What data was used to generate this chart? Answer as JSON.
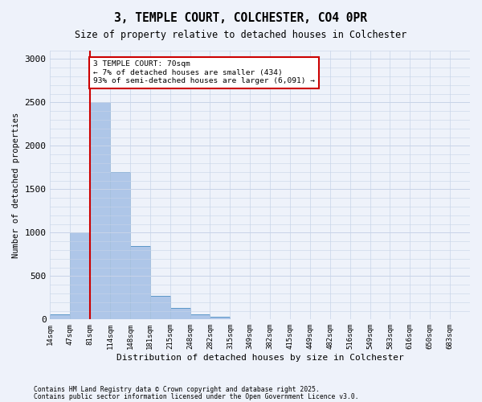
{
  "title_line1": "3, TEMPLE COURT, COLCHESTER, CO4 0PR",
  "title_line2": "Size of property relative to detached houses in Colchester",
  "xlabel": "Distribution of detached houses by size in Colchester",
  "ylabel": "Number of detached properties",
  "bin_labels": [
    "14sqm",
    "47sqm",
    "81sqm",
    "114sqm",
    "148sqm",
    "181sqm",
    "215sqm",
    "248sqm",
    "282sqm",
    "315sqm",
    "349sqm",
    "382sqm",
    "415sqm",
    "449sqm",
    "482sqm",
    "516sqm",
    "549sqm",
    "583sqm",
    "616sqm",
    "650sqm",
    "683sqm"
  ],
  "bar_heights": [
    60,
    1000,
    2500,
    1700,
    850,
    270,
    130,
    60,
    30,
    5,
    5,
    0,
    0,
    0,
    0,
    0,
    0,
    0,
    0,
    0
  ],
  "bar_color": "#aec6e8",
  "bar_edge_color": "#5a96c8",
  "red_line_x": 2,
  "annotation_text": "3 TEMPLE COURT: 70sqm\n← 7% of detached houses are smaller (434)\n93% of semi-detached houses are larger (6,091) →",
  "annotation_box_color": "white",
  "annotation_box_edge": "#cc0000",
  "red_line_color": "#cc0000",
  "ylim": [
    0,
    3100
  ],
  "yticks": [
    0,
    500,
    1000,
    1500,
    2000,
    2500,
    3000
  ],
  "footer_line1": "Contains HM Land Registry data © Crown copyright and database right 2025.",
  "footer_line2": "Contains public sector information licensed under the Open Government Licence v3.0.",
  "bg_color": "#eef2fa",
  "grid_color": "#c8d4e8"
}
